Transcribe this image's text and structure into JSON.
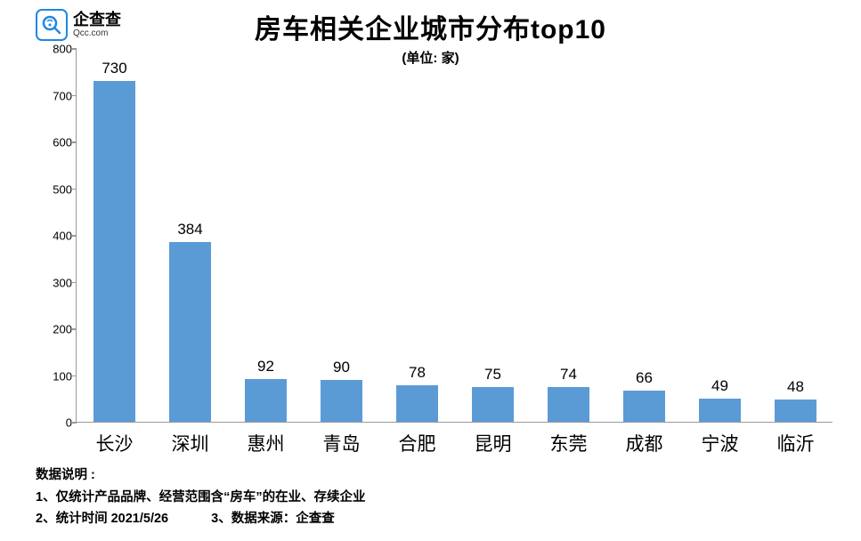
{
  "logo": {
    "cn": "企查查",
    "en": "Qcc.com"
  },
  "title": "房车相关企业城市分布top10",
  "subtitle": "(单位: 家)",
  "chart": {
    "type": "bar",
    "categories": [
      "长沙",
      "深圳",
      "惠州",
      "青岛",
      "合肥",
      "昆明",
      "东莞",
      "成都",
      "宁波",
      "临沂"
    ],
    "values": [
      730,
      384,
      92,
      90,
      78,
      75,
      74,
      66,
      49,
      48
    ],
    "bar_color": "#5b9bd5",
    "ylim": [
      0,
      800
    ],
    "ytick_step": 100,
    "yticks": [
      0,
      100,
      200,
      300,
      400,
      500,
      600,
      700,
      800
    ],
    "bar_width_ratio": 0.55,
    "axis_color": "#999999",
    "label_fontsize": 17,
    "xlabel_fontsize": 21,
    "title_fontsize": 30,
    "background_color": "#ffffff"
  },
  "footer": {
    "heading": "数据说明  :",
    "line1": "1、仅统计产品品牌、经营范围含“房车”的在业、存续企业",
    "line2a": "2、统计时间  2021/5/26",
    "line2b": "3、数据来源：企查查"
  }
}
